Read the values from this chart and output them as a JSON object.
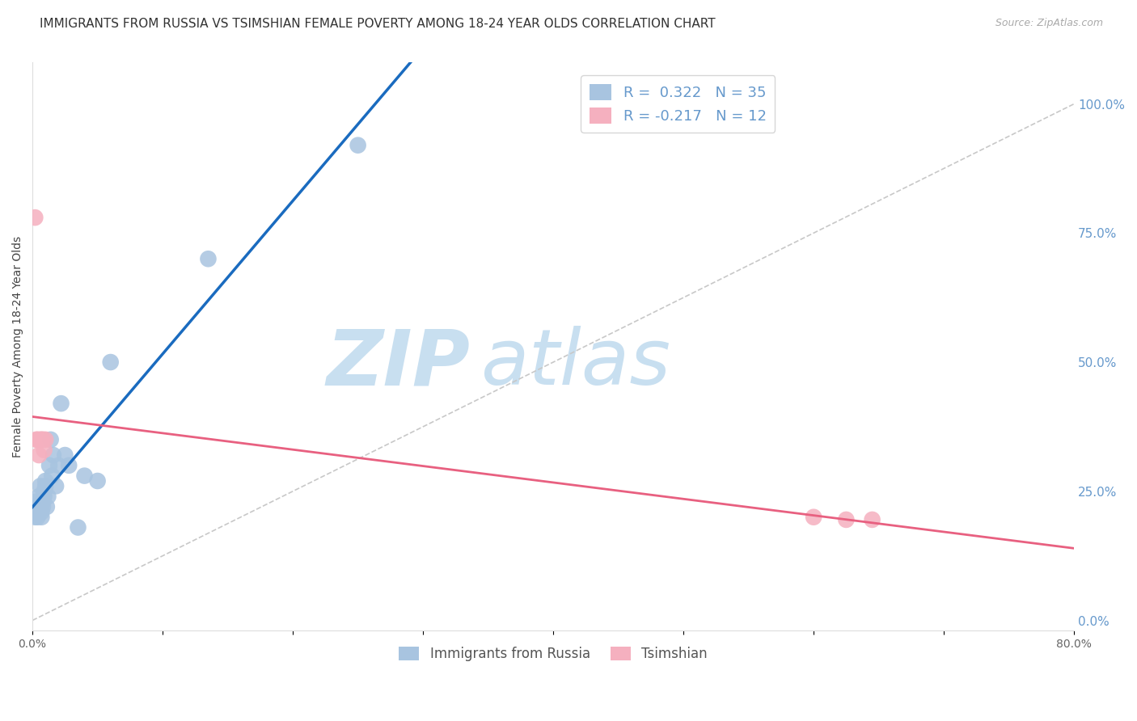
{
  "title": "IMMIGRANTS FROM RUSSIA VS TSIMSHIAN FEMALE POVERTY AMONG 18-24 YEAR OLDS CORRELATION CHART",
  "source": "Source: ZipAtlas.com",
  "ylabel": "Female Poverty Among 18-24 Year Olds",
  "xlim": [
    0.0,
    0.8
  ],
  "ylim": [
    -0.02,
    1.08
  ],
  "xticks": [
    0.0,
    0.1,
    0.2,
    0.3,
    0.4,
    0.5,
    0.6,
    0.7,
    0.8
  ],
  "xticklabels": [
    "0.0%",
    "",
    "",
    "",
    "",
    "",
    "",
    "",
    "80.0%"
  ],
  "yticks_right": [
    0.0,
    0.25,
    0.5,
    0.75,
    1.0
  ],
  "yticklabels_right": [
    "0.0%",
    "25.0%",
    "50.0%",
    "75.0%",
    "100.0%"
  ],
  "russia_x": [
    0.001,
    0.002,
    0.003,
    0.003,
    0.004,
    0.004,
    0.005,
    0.005,
    0.006,
    0.006,
    0.007,
    0.007,
    0.008,
    0.008,
    0.009,
    0.009,
    0.01,
    0.01,
    0.011,
    0.012,
    0.013,
    0.014,
    0.015,
    0.016,
    0.018,
    0.02,
    0.022,
    0.025,
    0.028,
    0.035,
    0.04,
    0.05,
    0.06,
    0.135,
    0.25
  ],
  "russia_y": [
    0.22,
    0.2,
    0.21,
    0.23,
    0.22,
    0.2,
    0.22,
    0.24,
    0.22,
    0.26,
    0.2,
    0.21,
    0.23,
    0.22,
    0.24,
    0.25,
    0.26,
    0.27,
    0.22,
    0.24,
    0.3,
    0.35,
    0.28,
    0.32,
    0.26,
    0.3,
    0.42,
    0.32,
    0.3,
    0.18,
    0.28,
    0.27,
    0.5,
    0.7,
    0.92
  ],
  "tsimshian_x": [
    0.002,
    0.003,
    0.004,
    0.005,
    0.006,
    0.007,
    0.008,
    0.009,
    0.01,
    0.6,
    0.625,
    0.645
  ],
  "tsimshian_y": [
    0.78,
    0.35,
    0.35,
    0.32,
    0.35,
    0.35,
    0.35,
    0.33,
    0.35,
    0.2,
    0.195,
    0.195
  ],
  "tsimshian_outlier_x": [
    0.003
  ],
  "tsimshian_outlier_y": [
    0.78
  ],
  "background_color": "#ffffff",
  "grid_color": "#cccccc",
  "title_fontsize": 11,
  "axis_label_fontsize": 10,
  "tick_fontsize": 10,
  "blue_color": "#a8c4e0",
  "pink_color": "#f5b0bf",
  "trend_blue": "#1a6bbf",
  "trend_pink": "#e86080",
  "right_tick_color": "#6699cc",
  "watermark_zip_color": "#c8dff0",
  "watermark_atlas_color": "#c8dff0"
}
